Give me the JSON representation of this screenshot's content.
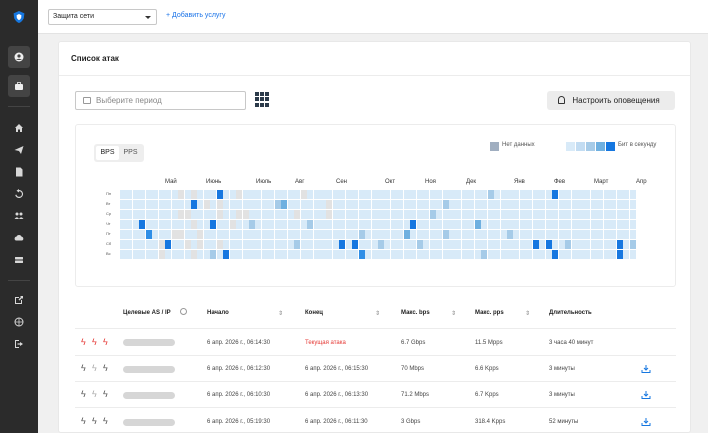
{
  "sidebar": {
    "icons": [
      "shield-logo-icon",
      "user-icon",
      "briefcase-icon",
      "home-icon",
      "send-icon",
      "document-icon",
      "history-icon",
      "team-icon",
      "cloud-icon",
      "server-icon",
      "external-link-icon",
      "globe-icon",
      "logout-icon"
    ]
  },
  "topbar": {
    "select_value": "Защита сети",
    "add_service": "+ Добавить услугу"
  },
  "card": {
    "title": "Список атак",
    "period_placeholder": "Выберите период",
    "notify_label": "Настроить оповещения"
  },
  "heatmap": {
    "toggle": [
      "BPS",
      "PPS"
    ],
    "legend_nodata": "Нет данных",
    "legend_bits": "Бит в секунду",
    "months": [
      "Май",
      "Июнь",
      "Июль",
      "Авг",
      "Сен",
      "Окт",
      "Ноя",
      "Дек",
      "Янв",
      "Фев",
      "Март",
      "Апр"
    ],
    "weekdays": [
      "Пн",
      "Вт",
      "Ср",
      "Чт",
      "Пт",
      "Сб",
      "Вс"
    ],
    "colors": {
      "empty": "#d8eaf8",
      "nodata": "#e2e2e2",
      "l1": "#a6cbe8",
      "l2": "#6fb0e0",
      "l3": "#2f8ee6",
      "l4": "#1677e0"
    },
    "weeks": [
      [
        0,
        0,
        0,
        0,
        0,
        0,
        0
      ],
      [
        0,
        0,
        0,
        0,
        0,
        0,
        0
      ],
      [
        0,
        0,
        0,
        0,
        0,
        0,
        0
      ],
      [
        0,
        0,
        0,
        4,
        0,
        0,
        0
      ],
      [
        0,
        0,
        0,
        0,
        3,
        0,
        0
      ],
      [
        0,
        0,
        0,
        0,
        0,
        0,
        0
      ],
      [
        0,
        0,
        0,
        0,
        0,
        9,
        9
      ],
      [
        0,
        0,
        0,
        0,
        0,
        4,
        0
      ],
      [
        0,
        0,
        0,
        0,
        9,
        0,
        0
      ],
      [
        9,
        0,
        9,
        0,
        9,
        0,
        0
      ],
      [
        0,
        0,
        9,
        0,
        0,
        9,
        0
      ],
      [
        9,
        4,
        0,
        9,
        0,
        0,
        9
      ],
      [
        0,
        0,
        0,
        0,
        9,
        9,
        0
      ],
      [
        0,
        9,
        0,
        0,
        0,
        0,
        0
      ],
      [
        0,
        0,
        0,
        4,
        0,
        0,
        1
      ],
      [
        4,
        9,
        9,
        0,
        0,
        9,
        0
      ],
      [
        0,
        0,
        0,
        0,
        0,
        0,
        4
      ],
      [
        0,
        0,
        0,
        9,
        0,
        0,
        0
      ],
      [
        9,
        0,
        9,
        0,
        0,
        0,
        0
      ],
      [
        0,
        0,
        9,
        0,
        0,
        0,
        0
      ],
      [
        0,
        0,
        0,
        1,
        0,
        0,
        0
      ],
      [
        0,
        0,
        0,
        0,
        0,
        0,
        0
      ],
      [
        0,
        0,
        0,
        0,
        0,
        0,
        0
      ],
      [
        0,
        0,
        0,
        0,
        0,
        0,
        0
      ],
      [
        0,
        1,
        0,
        0,
        0,
        0,
        0
      ],
      [
        0,
        2,
        0,
        0,
        0,
        0,
        0
      ],
      [
        0,
        0,
        0,
        0,
        0,
        0,
        0
      ],
      [
        0,
        0,
        9,
        0,
        0,
        1,
        0
      ],
      [
        9,
        0,
        0,
        0,
        0,
        0,
        0
      ],
      [
        0,
        0,
        0,
        1,
        0,
        0,
        0
      ],
      [
        0,
        0,
        0,
        0,
        0,
        0,
        0
      ],
      [
        0,
        0,
        0,
        0,
        0,
        0,
        0
      ],
      [
        0,
        9,
        9,
        0,
        0,
        0,
        0
      ],
      [
        0,
        0,
        0,
        0,
        0,
        0,
        0
      ],
      [
        0,
        0,
        0,
        0,
        0,
        4,
        0
      ],
      [
        0,
        0,
        0,
        0,
        0,
        0,
        0
      ],
      [
        0,
        0,
        0,
        0,
        0,
        4,
        0
      ],
      [
        0,
        0,
        0,
        0,
        1,
        0,
        3
      ],
      [
        0,
        0,
        0,
        0,
        0,
        0,
        0
      ],
      [
        0,
        0,
        0,
        0,
        0,
        0,
        0
      ],
      [
        0,
        0,
        0,
        0,
        0,
        1,
        0
      ],
      [
        0,
        0,
        0,
        0,
        0,
        0,
        0
      ],
      [
        0,
        0,
        0,
        0,
        0,
        0,
        0
      ],
      [
        0,
        0,
        0,
        0,
        0,
        0,
        0
      ],
      [
        0,
        0,
        0,
        0,
        2,
        0,
        0
      ],
      [
        0,
        0,
        0,
        4,
        0,
        0,
        0
      ],
      [
        0,
        0,
        0,
        0,
        0,
        1,
        0
      ],
      [
        0,
        0,
        0,
        0,
        0,
        0,
        0
      ],
      [
        0,
        0,
        1,
        0,
        0,
        0,
        0
      ],
      [
        0,
        0,
        0,
        0,
        0,
        0,
        0
      ],
      [
        0,
        1,
        0,
        0,
        1,
        0,
        0
      ],
      [
        0,
        0,
        0,
        0,
        0,
        0,
        0
      ],
      [
        0,
        0,
        0,
        0,
        0,
        0,
        0
      ],
      [
        0,
        0,
        0,
        0,
        0,
        0,
        0
      ],
      [
        0,
        0,
        0,
        0,
        0,
        0,
        0
      ],
      [
        0,
        0,
        0,
        2,
        0,
        0,
        0
      ],
      [
        0,
        0,
        0,
        0,
        0,
        0,
        1
      ],
      [
        1,
        0,
        0,
        0,
        0,
        0,
        0
      ],
      [
        0,
        0,
        0,
        0,
        0,
        0,
        0
      ],
      [
        0,
        0,
        0,
        0,
        0,
        0,
        0
      ],
      [
        0,
        0,
        0,
        0,
        1,
        0,
        0
      ],
      [
        0,
        0,
        0,
        0,
        0,
        0,
        0
      ],
      [
        0,
        0,
        0,
        0,
        0,
        0,
        0
      ],
      [
        0,
        0,
        0,
        0,
        0,
        0,
        0
      ],
      [
        0,
        0,
        0,
        0,
        0,
        4,
        0
      ],
      [
        0,
        0,
        0,
        0,
        0,
        0,
        0
      ],
      [
        0,
        0,
        0,
        0,
        0,
        4,
        0
      ],
      [
        4,
        0,
        0,
        0,
        0,
        0,
        4
      ],
      [
        0,
        0,
        0,
        0,
        0,
        0,
        0
      ],
      [
        0,
        0,
        0,
        0,
        0,
        1,
        0
      ],
      [
        0,
        0,
        0,
        0,
        0,
        0,
        0
      ],
      [
        0,
        0,
        0,
        0,
        0,
        0,
        0
      ],
      [
        0,
        0,
        0,
        0,
        0,
        0,
        0
      ],
      [
        0,
        0,
        0,
        0,
        0,
        0,
        0
      ],
      [
        0,
        0,
        0,
        0,
        0,
        0,
        0
      ],
      [
        0,
        0,
        0,
        0,
        0,
        0,
        0
      ],
      [
        0,
        0,
        0,
        0,
        0,
        0,
        0
      ],
      [
        0,
        0,
        0,
        0,
        0,
        4,
        4
      ],
      [
        0,
        0,
        0,
        0,
        0,
        0,
        0
      ],
      [
        0,
        0,
        0,
        0,
        0,
        1,
        0
      ]
    ]
  },
  "table": {
    "headers": {
      "targets": "Целевые AS / IP",
      "start": "Начало",
      "end": "Конец",
      "max_bps": "Макс. bps",
      "max_pps": "Макс. pps",
      "duration": "Длительность"
    },
    "rows": [
      {
        "severity": "active",
        "start": "6 апр. 2026 г., 06:14:30",
        "end": "Текущая атака",
        "bps": "6.7 Gbps",
        "pps": "11.5 Mpps",
        "duration": "3 часа 40 минут",
        "download": false
      },
      {
        "severity": "past",
        "start": "6 апр. 2026 г., 06:12:30",
        "end": "6 апр. 2026 г., 06:15:30",
        "bps": "70 Mbps",
        "pps": "6.6 Kpps",
        "duration": "3 минуты",
        "download": true
      },
      {
        "severity": "past",
        "start": "6 апр. 2026 г., 06:10:30",
        "end": "6 апр. 2026 г., 06:13:30",
        "bps": "71.2 Mbps",
        "pps": "6.7 Kpps",
        "duration": "3 минуты",
        "download": true
      },
      {
        "severity": "past",
        "start": "6 апр. 2026 г., 05:19:30",
        "end": "6 апр. 2026 г., 06:11:30",
        "bps": "3 Gbps",
        "pps": "318.4 Kpps",
        "duration": "52 минуты",
        "download": true
      }
    ]
  }
}
